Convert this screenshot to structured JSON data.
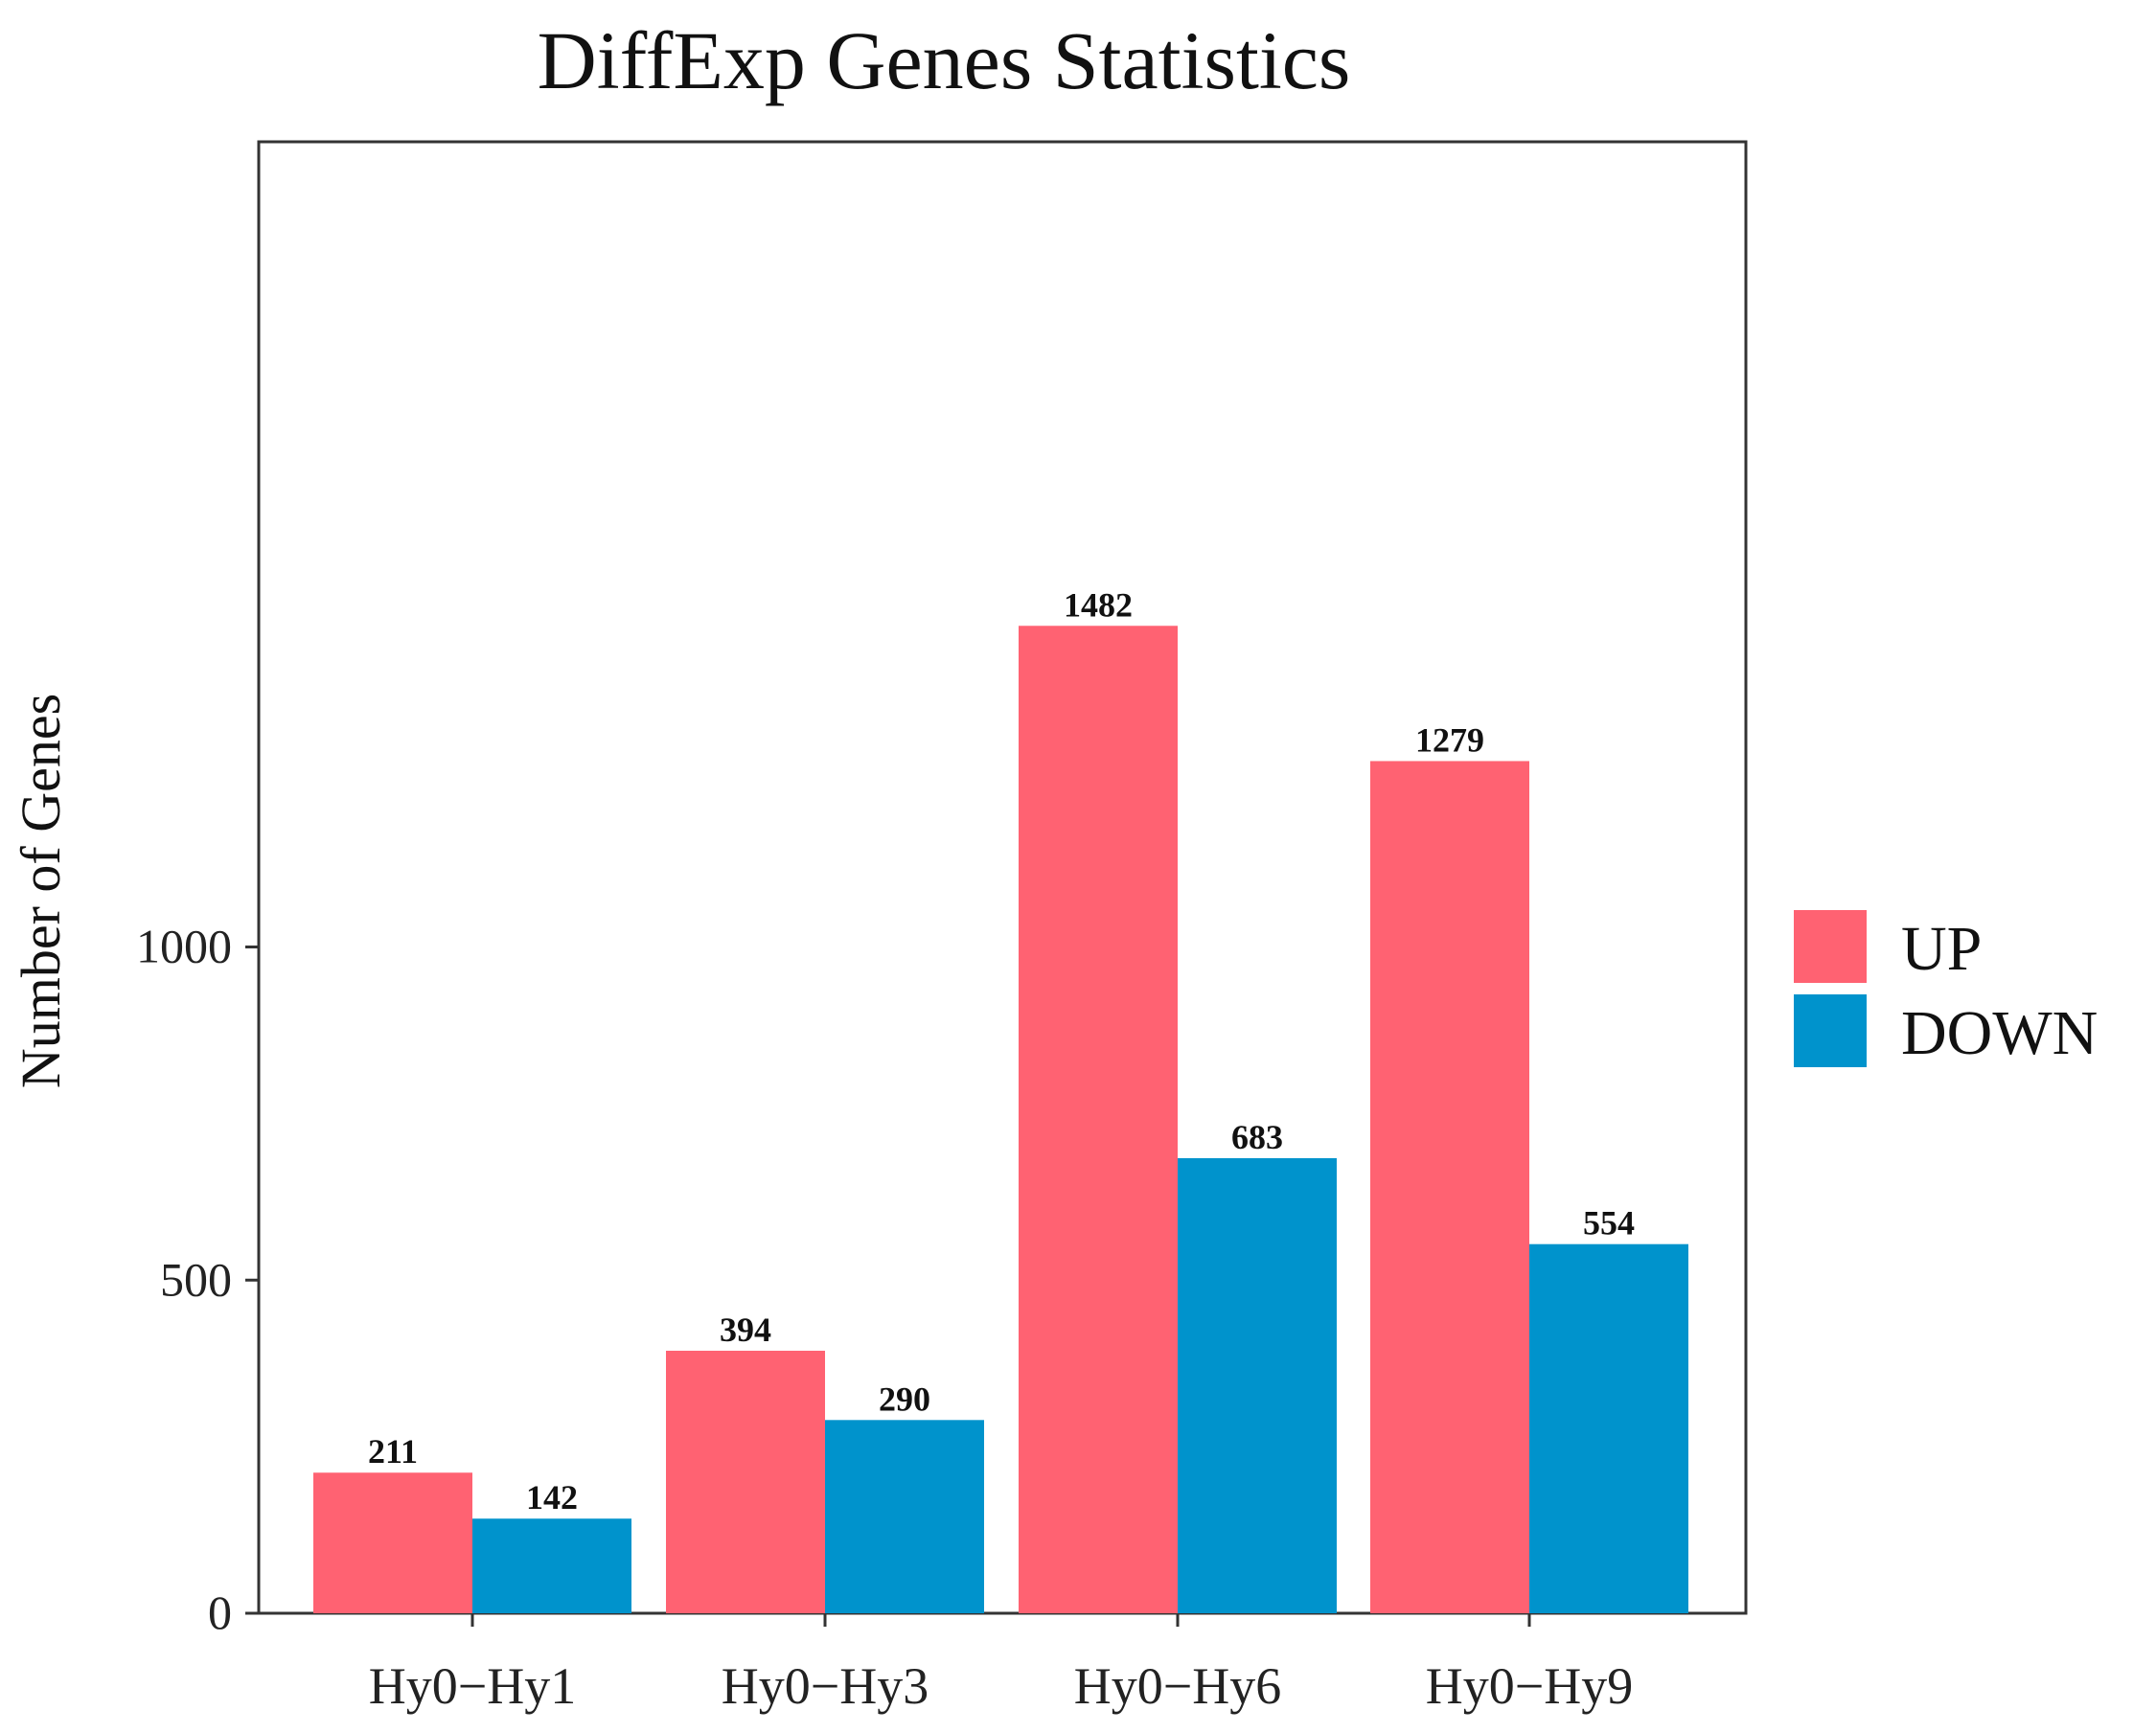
{
  "chart_data": {
    "type": "bar",
    "title": "DiffExp Genes Statistics",
    "xlabel": "",
    "ylabel": "Number of Genes",
    "categories": [
      "Hy0−Hy1",
      "Hy0−Hy3",
      "Hy0−Hy6",
      "Hy0−Hy9"
    ],
    "series": [
      {
        "name": "UP",
        "color": "#ff6272",
        "values": [
          211,
          394,
          1482,
          1279
        ]
      },
      {
        "name": "DOWN",
        "color": "#0093cc",
        "values": [
          142,
          290,
          683,
          554
        ]
      }
    ],
    "ylim": [
      0,
      1574
    ],
    "yticks": [
      0,
      500,
      1000
    ],
    "grid": false,
    "legend_position": "right"
  }
}
